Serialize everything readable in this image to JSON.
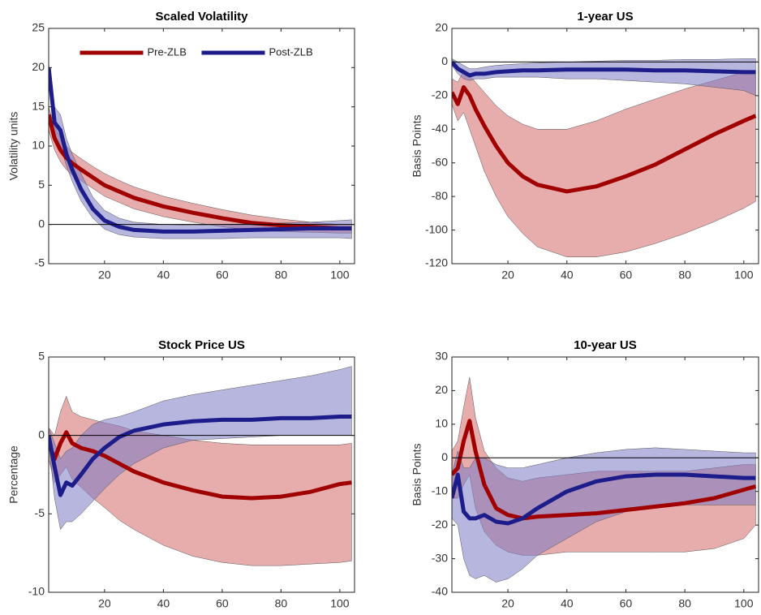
{
  "chart_data": [
    {
      "type": "line",
      "title": "Scaled Volatility",
      "ylabel": "Volatility units",
      "x": [
        1,
        3,
        5,
        7,
        9,
        12,
        16,
        20,
        25,
        30,
        40,
        50,
        60,
        70,
        80,
        90,
        100,
        104
      ],
      "xlim": [
        1,
        105
      ],
      "xticks": [
        20,
        40,
        60,
        80,
        100
      ],
      "ylim": [
        -5,
        25
      ],
      "yticks": [
        -5,
        0,
        5,
        10,
        15,
        20,
        25
      ],
      "zero_line": true,
      "legend": "upper center",
      "series": [
        {
          "name": "Pre-ZLB",
          "color": "#a00000",
          "band_color": "#d46a6a",
          "values": [
            14,
            11,
            9.5,
            8.5,
            7.8,
            7,
            6,
            5,
            4.2,
            3.4,
            2.3,
            1.5,
            0.8,
            0.2,
            -0.1,
            -0.3,
            -0.5,
            -0.5
          ],
          "lower": [
            12,
            9.5,
            8,
            7,
            6.3,
            5.6,
            4.6,
            3.6,
            2.8,
            2,
            1,
            0.3,
            -0.3,
            -0.7,
            -0.9,
            -1,
            -1.1,
            -1.1
          ],
          "upper": [
            15,
            12.5,
            11,
            10,
            9.2,
            8.4,
            7.4,
            6.5,
            5.6,
            4.8,
            3.6,
            2.7,
            1.9,
            1.2,
            0.7,
            0.3,
            0,
            0
          ]
        },
        {
          "name": "Post-ZLB",
          "color": "#1c1c8a",
          "band_color": "#7a7ac4",
          "values": [
            20,
            13,
            12,
            9,
            7,
            4.5,
            2,
            0.5,
            -0.3,
            -0.7,
            -0.9,
            -0.9,
            -0.8,
            -0.7,
            -0.6,
            -0.5,
            -0.5,
            -0.5
          ],
          "lower": [
            18,
            11,
            10,
            7.5,
            5.5,
            3,
            0.8,
            -0.6,
            -1.3,
            -1.6,
            -1.8,
            -1.8,
            -1.8,
            -1.7,
            -1.7,
            -1.7,
            -1.7,
            -1.8
          ],
          "upper": [
            20.5,
            15,
            14,
            11,
            9,
            6.5,
            3.5,
            1.8,
            0.8,
            0.3,
            0,
            -0.1,
            0,
            0.1,
            0.2,
            0.3,
            0.5,
            0.6
          ]
        }
      ]
    },
    {
      "type": "line",
      "title": "1-year US",
      "ylabel": "Basis Points",
      "x": [
        1,
        3,
        5,
        7,
        9,
        12,
        16,
        20,
        25,
        30,
        40,
        50,
        60,
        70,
        80,
        90,
        100,
        104
      ],
      "xlim": [
        1,
        105
      ],
      "xticks": [
        20,
        40,
        60,
        80,
        100
      ],
      "ylim": [
        -120,
        20
      ],
      "yticks": [
        -120,
        -100,
        -80,
        -60,
        -40,
        -20,
        0,
        20
      ],
      "zero_line": true,
      "series": [
        {
          "color": "#a00000",
          "band_color": "#d46a6a",
          "values": [
            -18,
            -25,
            -15,
            -20,
            -28,
            -38,
            -50,
            -60,
            -68,
            -73,
            -77,
            -74,
            -68,
            -61,
            -52,
            -43,
            -35,
            -32
          ],
          "lower": [
            -25,
            -35,
            -30,
            -40,
            -50,
            -65,
            -80,
            -92,
            -102,
            -110,
            -116,
            -116,
            -113,
            -108,
            -102,
            -95,
            -87,
            -83
          ],
          "upper": [
            -10,
            -12,
            -5,
            -8,
            -12,
            -18,
            -26,
            -32,
            -37,
            -40,
            -40,
            -35,
            -28,
            -22,
            -16,
            -11,
            -6,
            -5
          ]
        },
        {
          "color": "#1c1c8a",
          "band_color": "#7a7ac4",
          "values": [
            0,
            -4,
            -6,
            -8,
            -7,
            -7,
            -6,
            -5.5,
            -5,
            -5,
            -4.5,
            -4.5,
            -4.5,
            -5,
            -5,
            -5.5,
            -6,
            -6
          ],
          "lower": [
            -2,
            -7,
            -10,
            -11,
            -10,
            -10,
            -9,
            -9,
            -9,
            -9,
            -10,
            -10,
            -11,
            -12,
            -13,
            -15,
            -17,
            -20
          ],
          "upper": [
            2,
            0,
            -2,
            -4,
            -4,
            -3,
            -2,
            -1.5,
            -1,
            -0.5,
            0,
            0.5,
            1,
            1,
            1.5,
            1.5,
            2,
            2
          ]
        }
      ]
    },
    {
      "type": "line",
      "title": "Stock Price US",
      "ylabel": "Percentage",
      "x": [
        1,
        3,
        5,
        7,
        9,
        12,
        16,
        20,
        25,
        30,
        40,
        50,
        60,
        70,
        80,
        90,
        100,
        104
      ],
      "xlim": [
        1,
        105
      ],
      "xticks": [
        20,
        40,
        60,
        80,
        100
      ],
      "ylim": [
        -10,
        5
      ],
      "yticks": [
        -10,
        -5,
        0,
        5
      ],
      "zero_line": true,
      "series": [
        {
          "color": "#a00000",
          "band_color": "#d46a6a",
          "values": [
            -0.5,
            -1.5,
            -0.5,
            0.2,
            -0.5,
            -0.8,
            -1,
            -1.3,
            -1.8,
            -2.3,
            -3,
            -3.5,
            -3.9,
            -4,
            -3.9,
            -3.6,
            -3.1,
            -3
          ],
          "lower": [
            -1.5,
            -3,
            -2.5,
            -2,
            -2.8,
            -3.3,
            -4,
            -4.6,
            -5.4,
            -6,
            -7,
            -7.7,
            -8.1,
            -8.3,
            -8.3,
            -8.2,
            -8.1,
            -8
          ],
          "upper": [
            0.5,
            0,
            1.5,
            2.5,
            1.5,
            1.2,
            1,
            0.8,
            0.6,
            0.3,
            0,
            -0.3,
            -0.5,
            -0.6,
            -0.6,
            -0.6,
            -0.6,
            -0.5
          ]
        },
        {
          "color": "#1c1c8a",
          "band_color": "#7a7ac4",
          "values": [
            0,
            -2,
            -3.8,
            -3,
            -3.2,
            -2.5,
            -1.5,
            -0.8,
            -0.1,
            0.3,
            0.7,
            0.9,
            1,
            1,
            1.1,
            1.1,
            1.2,
            1.2
          ],
          "lower": [
            -0.5,
            -4,
            -6,
            -5.5,
            -5.5,
            -5,
            -4.2,
            -3.4,
            -2.5,
            -1.8,
            -0.8,
            -0.3,
            -0.2,
            -0.1,
            0,
            0,
            0,
            0
          ],
          "upper": [
            0.5,
            -0.5,
            -1.5,
            -1,
            -0.8,
            0,
            0.7,
            1,
            1.2,
            1.5,
            2.2,
            2.6,
            2.9,
            3.2,
            3.5,
            3.8,
            4.2,
            4.4
          ]
        }
      ]
    },
    {
      "type": "line",
      "title": "10-year US",
      "ylabel": "Basis Points",
      "x": [
        1,
        3,
        5,
        7,
        9,
        12,
        16,
        20,
        25,
        30,
        40,
        50,
        60,
        70,
        80,
        90,
        100,
        104
      ],
      "xlim": [
        1,
        105
      ],
      "xticks": [
        20,
        40,
        60,
        80,
        100
      ],
      "ylim": [
        -40,
        30
      ],
      "yticks": [
        -40,
        -30,
        -20,
        -10,
        0,
        10,
        20,
        30
      ],
      "zero_line": true,
      "series": [
        {
          "color": "#a00000",
          "band_color": "#d46a6a",
          "values": [
            -5,
            -3,
            5,
            11,
            2,
            -8,
            -15,
            -17,
            -18,
            -17.5,
            -17,
            -16.5,
            -15.5,
            -14.5,
            -13.5,
            -12,
            -9.5,
            -8.5
          ],
          "lower": [
            -12,
            -12,
            -8,
            -5,
            -15,
            -22,
            -26,
            -28,
            -29,
            -29,
            -28,
            -28,
            -28,
            -28,
            -28,
            -27,
            -24,
            -20
          ],
          "upper": [
            2,
            5,
            15,
            24,
            12,
            2,
            -3,
            -6,
            -7,
            -6,
            -5,
            -4,
            -4,
            -4,
            -4,
            -3,
            -2,
            -2
          ]
        },
        {
          "color": "#1c1c8a",
          "band_color": "#7a7ac4",
          "values": [
            -12,
            -5,
            -16,
            -18,
            -18,
            -17,
            -19,
            -19.5,
            -18,
            -15,
            -10,
            -7,
            -5.5,
            -5,
            -5,
            -5.5,
            -6,
            -6
          ],
          "lower": [
            -18,
            -20,
            -30,
            -35,
            -36,
            -35,
            -37,
            -36,
            -33,
            -29,
            -24,
            -19,
            -16,
            -15,
            -14,
            -14,
            -14,
            -14
          ],
          "upper": [
            -5,
            2,
            -3,
            -3,
            0,
            0,
            -2,
            -3,
            -3,
            -2,
            0,
            1.5,
            2.5,
            3,
            2.5,
            2,
            1.5,
            1.5
          ]
        }
      ]
    }
  ]
}
